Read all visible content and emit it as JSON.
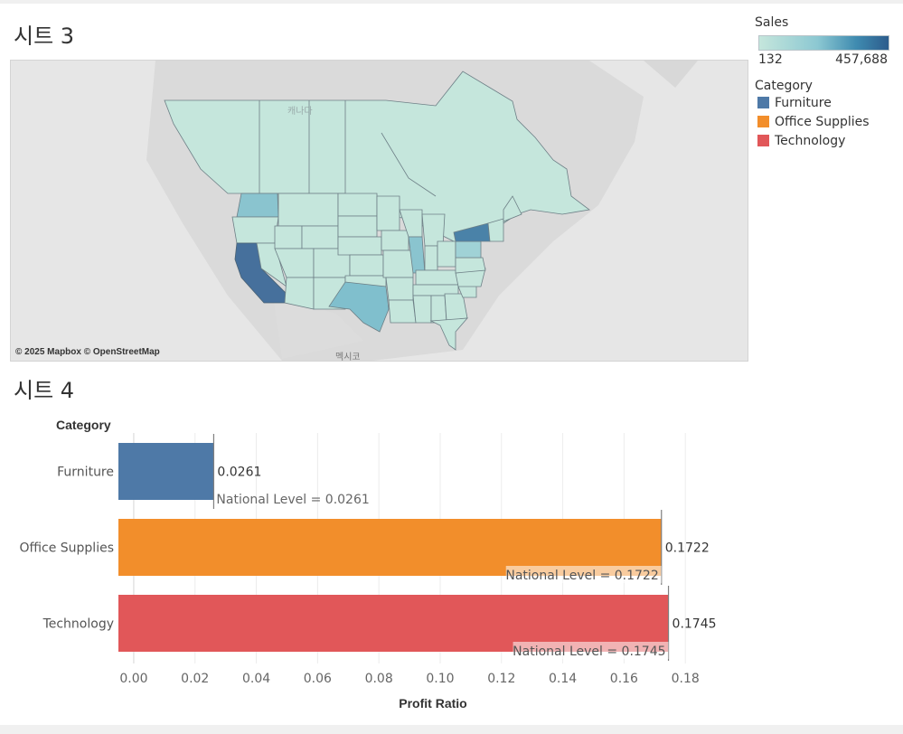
{
  "sheet3": {
    "title": "시트 3",
    "attribution": "© 2025 Mapbox © OpenStreetMap",
    "map_labels": {
      "mexico": "멕시코",
      "canada": "캐나다"
    },
    "sales_legend": {
      "title": "Sales",
      "min": "132",
      "max": "457,688",
      "color_low": "#c5e6dc",
      "color_high": "#2c5c8c"
    },
    "category_legend": {
      "title": "Category",
      "items": [
        {
          "label": "Furniture",
          "color": "#4e79a7"
        },
        {
          "label": "Office Supplies",
          "color": "#f28e2b"
        },
        {
          "label": "Technology",
          "color": "#e15759"
        }
      ]
    }
  },
  "sheet4": {
    "title": "시트 4",
    "row_header": "Category",
    "chart_data": {
      "type": "bar",
      "orientation": "horizontal",
      "categories": [
        "Furniture",
        "Office Supplies",
        "Technology"
      ],
      "values": [
        0.0261,
        0.1722,
        0.1745
      ],
      "value_labels": [
        "0.0261",
        "0.1722",
        "0.1745"
      ],
      "colors": [
        "#4e79a7",
        "#f28e2b",
        "#e15759"
      ],
      "reference_lines": [
        {
          "label": "National Level = 0.0261",
          "value": 0.0261
        },
        {
          "label": "National Level = 0.1722",
          "value": 0.1722
        },
        {
          "label": "National Level = 0.1745",
          "value": 0.1745
        }
      ],
      "xlabel": "Profit Ratio",
      "xticks": [
        "0.00",
        "0.02",
        "0.04",
        "0.06",
        "0.08",
        "0.10",
        "0.12",
        "0.14",
        "0.16",
        "0.18"
      ],
      "xtick_values": [
        0,
        0.02,
        0.04,
        0.06,
        0.08,
        0.1,
        0.12,
        0.14,
        0.16,
        0.18
      ],
      "xlim": [
        -0.005,
        0.2
      ]
    }
  }
}
